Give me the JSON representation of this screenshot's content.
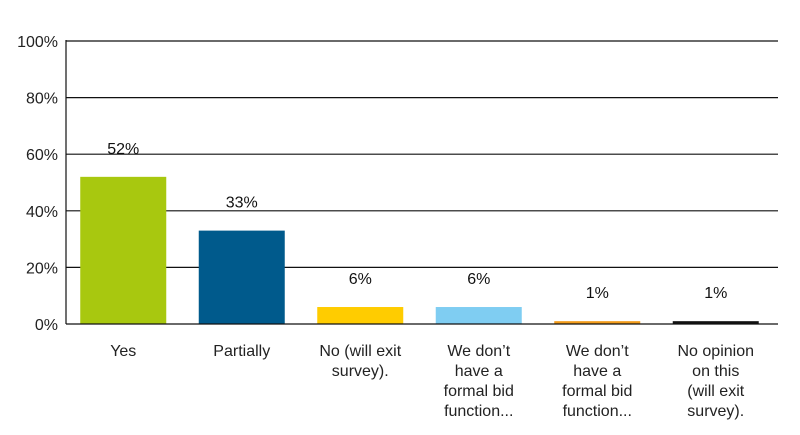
{
  "chart_data": {
    "type": "bar",
    "title": "",
    "xlabel": "",
    "ylabel": "",
    "ylim": [
      0,
      100
    ],
    "y_ticks": [
      0,
      20,
      40,
      60,
      80,
      100
    ],
    "y_tick_labels": [
      "0%",
      "20%",
      "40%",
      "60%",
      "80%",
      "100%"
    ],
    "grid": true,
    "legend": "none",
    "categories": [
      "Yes",
      "Partially",
      "No (will exit survey).",
      "We don’t have a formal bid function...",
      "We don’t have a formal bid function...",
      "No opinion on this (will exit survey)."
    ],
    "category_lines": [
      [
        "Yes"
      ],
      [
        "Partially"
      ],
      [
        "No (will exit",
        "survey)."
      ],
      [
        "We don’t",
        "have a",
        "formal bid",
        "function..."
      ],
      [
        "We don’t",
        "have a",
        "formal bid",
        "function..."
      ],
      [
        "No opinion",
        "on this",
        "(will exit",
        "survey)."
      ]
    ],
    "values": [
      52,
      33,
      6,
      6,
      1,
      1
    ],
    "value_labels": [
      "52%",
      "33%",
      "6%",
      "6%",
      "1%",
      "1%"
    ],
    "colors": [
      "#a8c80f",
      "#005a8c",
      "#ffcc00",
      "#7fcdf2",
      "#f39c1a",
      "#111111"
    ]
  }
}
